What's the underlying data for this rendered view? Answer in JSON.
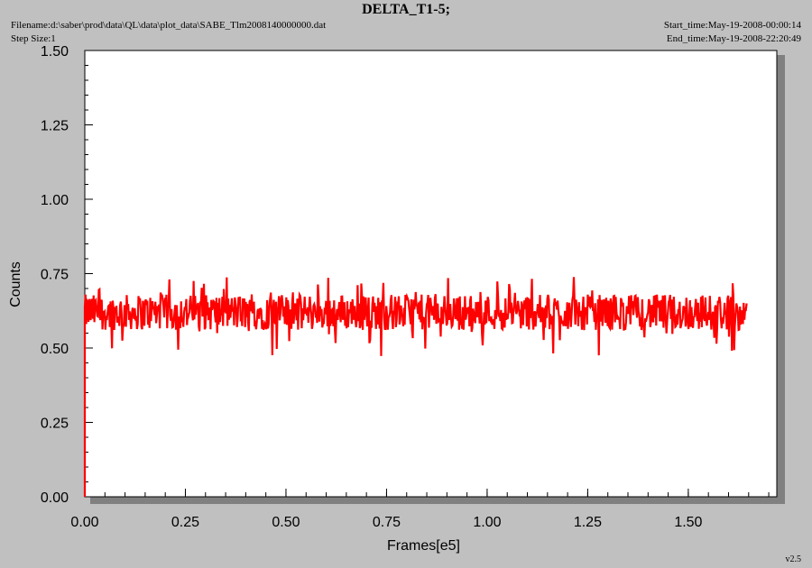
{
  "header": {
    "title": "DELTA_T1-5;",
    "filename": "Filename:d:\\saber\\prod\\data\\QL\\data\\plot_data\\SABE_Tlm2008140000000.dat",
    "step_size": "Step Size:1",
    "start_time": "Start_time:May-19-2008-00:00:14",
    "end_time": "End_time:May-19-2008-22:20:49"
  },
  "footer": {
    "version": "v2.5"
  },
  "chart_data": {
    "type": "line",
    "xlabel": "Frames[e5]",
    "ylabel": "Counts",
    "xlim": [
      0.0,
      1.72
    ],
    "ylim": [
      0.0,
      1.5
    ],
    "xticks": [
      "0.00",
      "0.25",
      "0.50",
      "0.75",
      "1.00",
      "1.25",
      "1.50"
    ],
    "yticks": [
      "0.00",
      "0.25",
      "0.50",
      "0.75",
      "1.00",
      "1.25",
      "1.50"
    ],
    "grid": false,
    "series": [
      {
        "color": "#ff0000",
        "x_range": [
          0.0,
          1.645
        ],
        "baseline_mean": 0.615,
        "typical_band": [
          0.56,
          0.68
        ],
        "observed_min": 0.47,
        "observed_max": 0.74,
        "initial_value": 0.0
      }
    ]
  }
}
